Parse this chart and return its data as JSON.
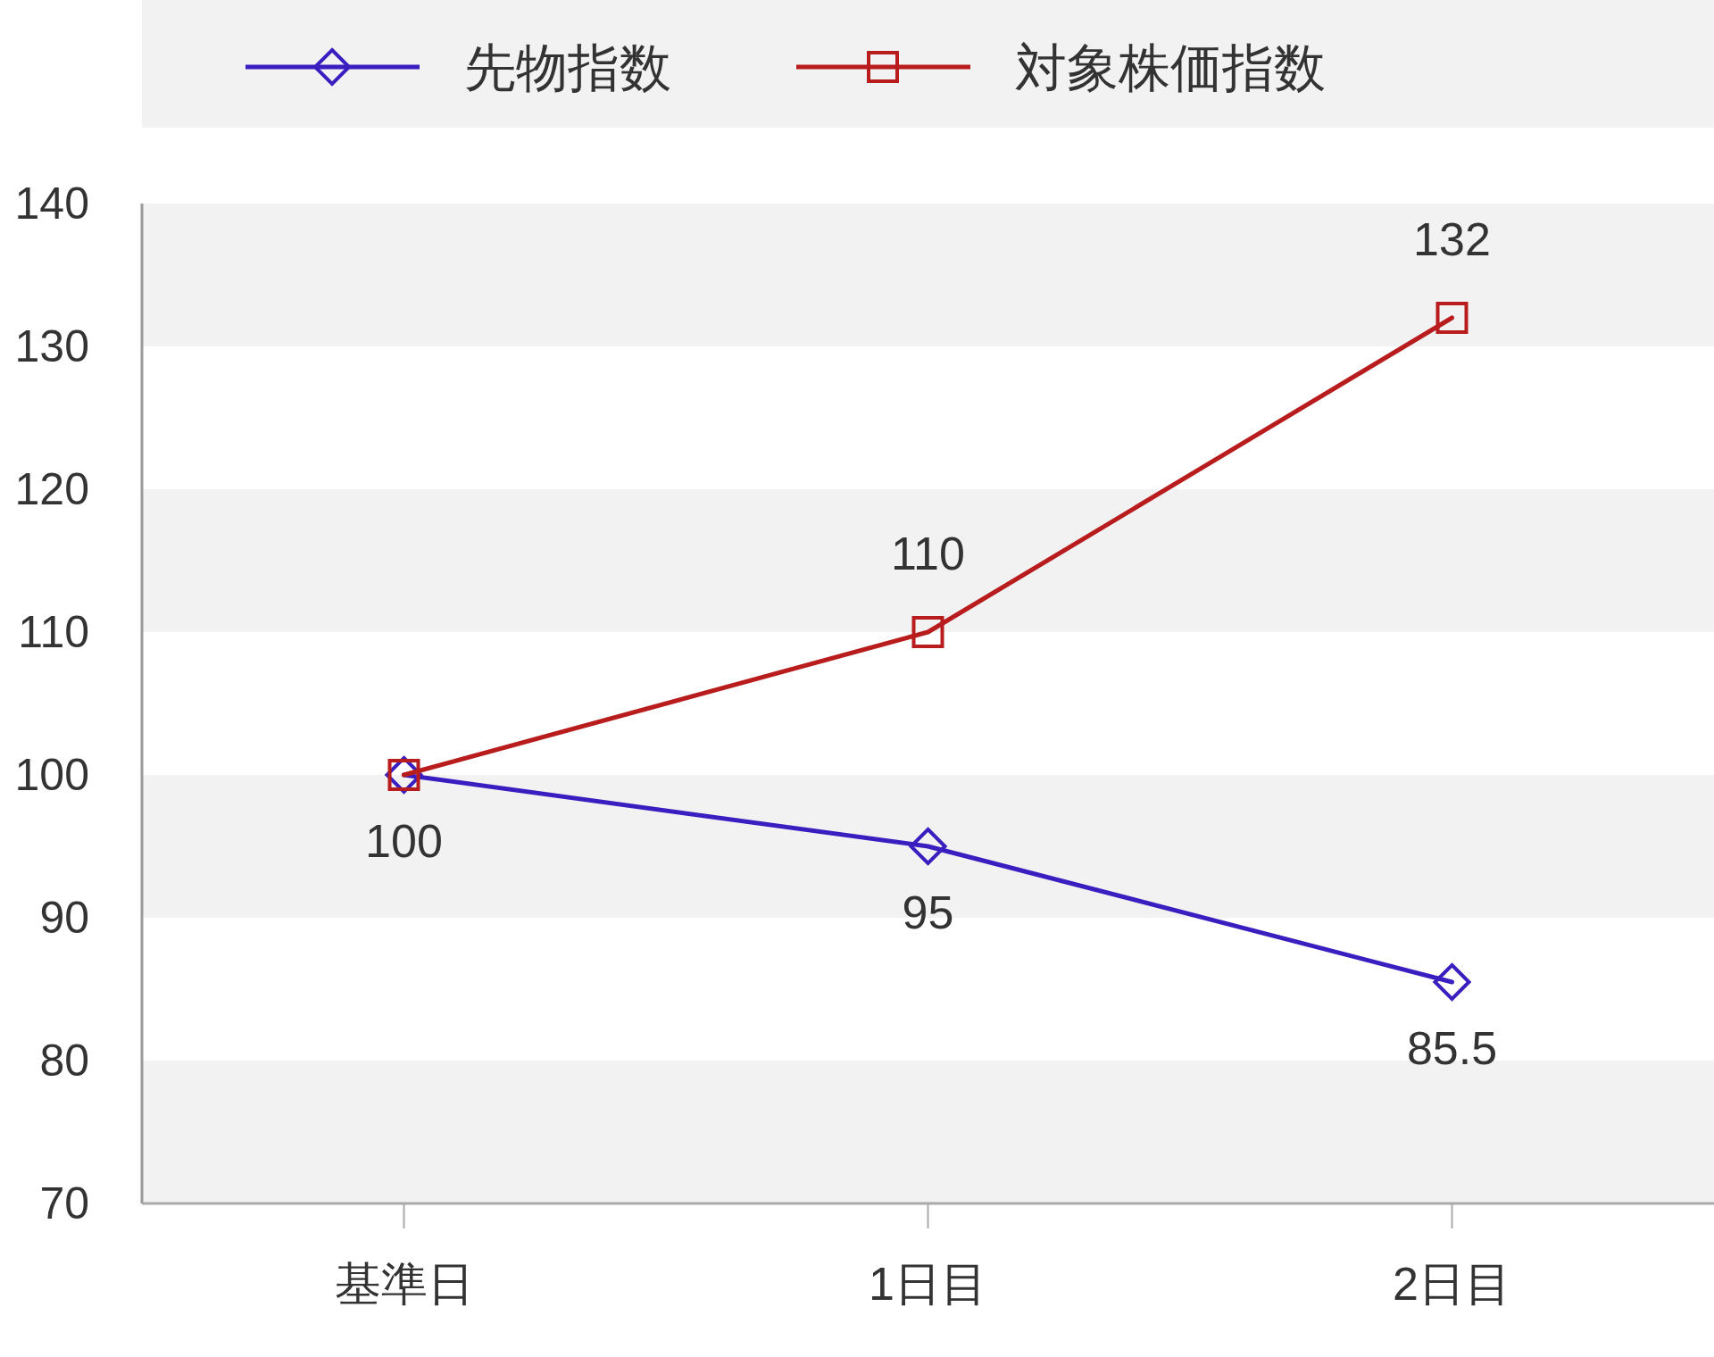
{
  "chart_data": {
    "type": "line",
    "categories": [
      "基準日",
      "1日目",
      "2日目"
    ],
    "series": [
      {
        "name": "先物指数",
        "color": "#3a1ec0",
        "values": [
          100,
          95,
          85.5
        ],
        "marker": "diamond",
        "value_labels": [
          "100",
          "95",
          "85.5"
        ]
      },
      {
        "name": "対象株価指数",
        "color": "#b81c1c",
        "values": [
          100,
          110,
          132
        ],
        "marker": "square",
        "value_labels": [
          null,
          "110",
          "132"
        ]
      }
    ],
    "ylim": [
      70,
      140
    ],
    "yticks": [
      70,
      80,
      90,
      100,
      110,
      120,
      130,
      140
    ],
    "bands": [
      {
        "axis": "y",
        "from": 70,
        "to": 80,
        "color": "#f2f2f2"
      },
      {
        "axis": "y",
        "from": 90,
        "to": 100,
        "color": "#f2f2f2"
      },
      {
        "axis": "y",
        "from": 110,
        "to": 120,
        "color": "#f2f2f2"
      },
      {
        "axis": "y",
        "from": 130,
        "to": 140,
        "color": "#f2f2f2"
      }
    ],
    "legend": "top",
    "line_style": "solid"
  }
}
